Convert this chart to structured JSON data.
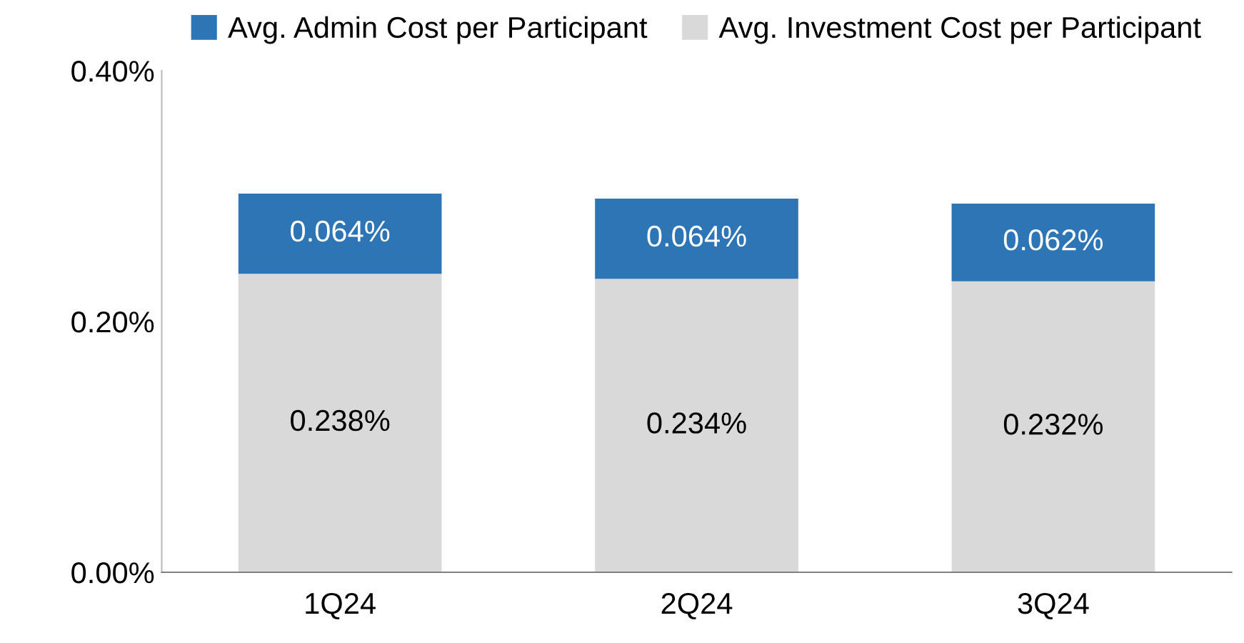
{
  "chart_data": {
    "type": "bar",
    "stacked": true,
    "categories": [
      "1Q24",
      "2Q24",
      "3Q24"
    ],
    "series": [
      {
        "name": "Avg. Investment Cost per Participant",
        "color": "#d9d9d9",
        "values": [
          0.238,
          0.234,
          0.232
        ],
        "value_labels": [
          "0.238%",
          "0.234%",
          "0.232%"
        ]
      },
      {
        "name": "Avg. Admin Cost per Participant",
        "color": "#2e75b6",
        "values": [
          0.064,
          0.064,
          0.062
        ],
        "value_labels": [
          "0.064%",
          "0.064%",
          "0.062%"
        ]
      }
    ],
    "ylim": [
      0,
      0.4
    ],
    "yticks": [
      {
        "value": 0,
        "label": "0.00%"
      },
      {
        "value": 0.2,
        "label": "0.20%"
      },
      {
        "value": 0.4,
        "label": "0.40%"
      }
    ],
    "grid": false,
    "legend": "top"
  }
}
